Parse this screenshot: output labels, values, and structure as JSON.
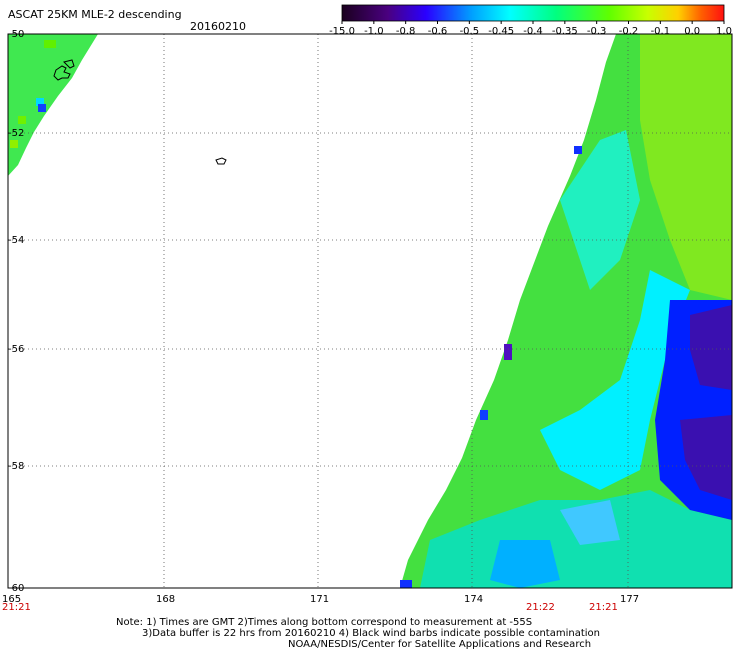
{
  "header": {
    "title": "ASCAT 25KM MLE-2 descending",
    "date": "20160210"
  },
  "colorbar": {
    "labels": [
      "-15.0",
      "-1.0",
      "-0.8",
      "-0.6",
      "-0.5",
      "-0.45",
      "-0.4",
      "-0.35",
      "-0.3",
      "-0.2",
      "-0.1",
      "0.0",
      "1.0"
    ],
    "colors": [
      "#2a003a",
      "#5a00a0",
      "#3000e0",
      "#0040ff",
      "#00a0ff",
      "#00ffff",
      "#00ff90",
      "#40ff00",
      "#90ff00",
      "#d0ff00",
      "#ffe000",
      "#ff8000",
      "#ff2000"
    ]
  },
  "axes": {
    "lat_labels": [
      "-50",
      "-52",
      "-54",
      "-56",
      "-58",
      "-60"
    ],
    "lon_labels": [
      "165",
      "168",
      "171",
      "174",
      "177"
    ]
  },
  "times": [
    "21:21",
    "21:22",
    "21:21"
  ],
  "notes": {
    "line1": "Note: 1) Times are GMT 2)Times along bottom correspond to measurement at -55S",
    "line2": "3)Data buffer is 22 hrs from 20160210 4) Black wind barbs indicate possible contamination",
    "line3": "NOAA/NESDIS/Center for Satellite Applications and Research"
  }
}
